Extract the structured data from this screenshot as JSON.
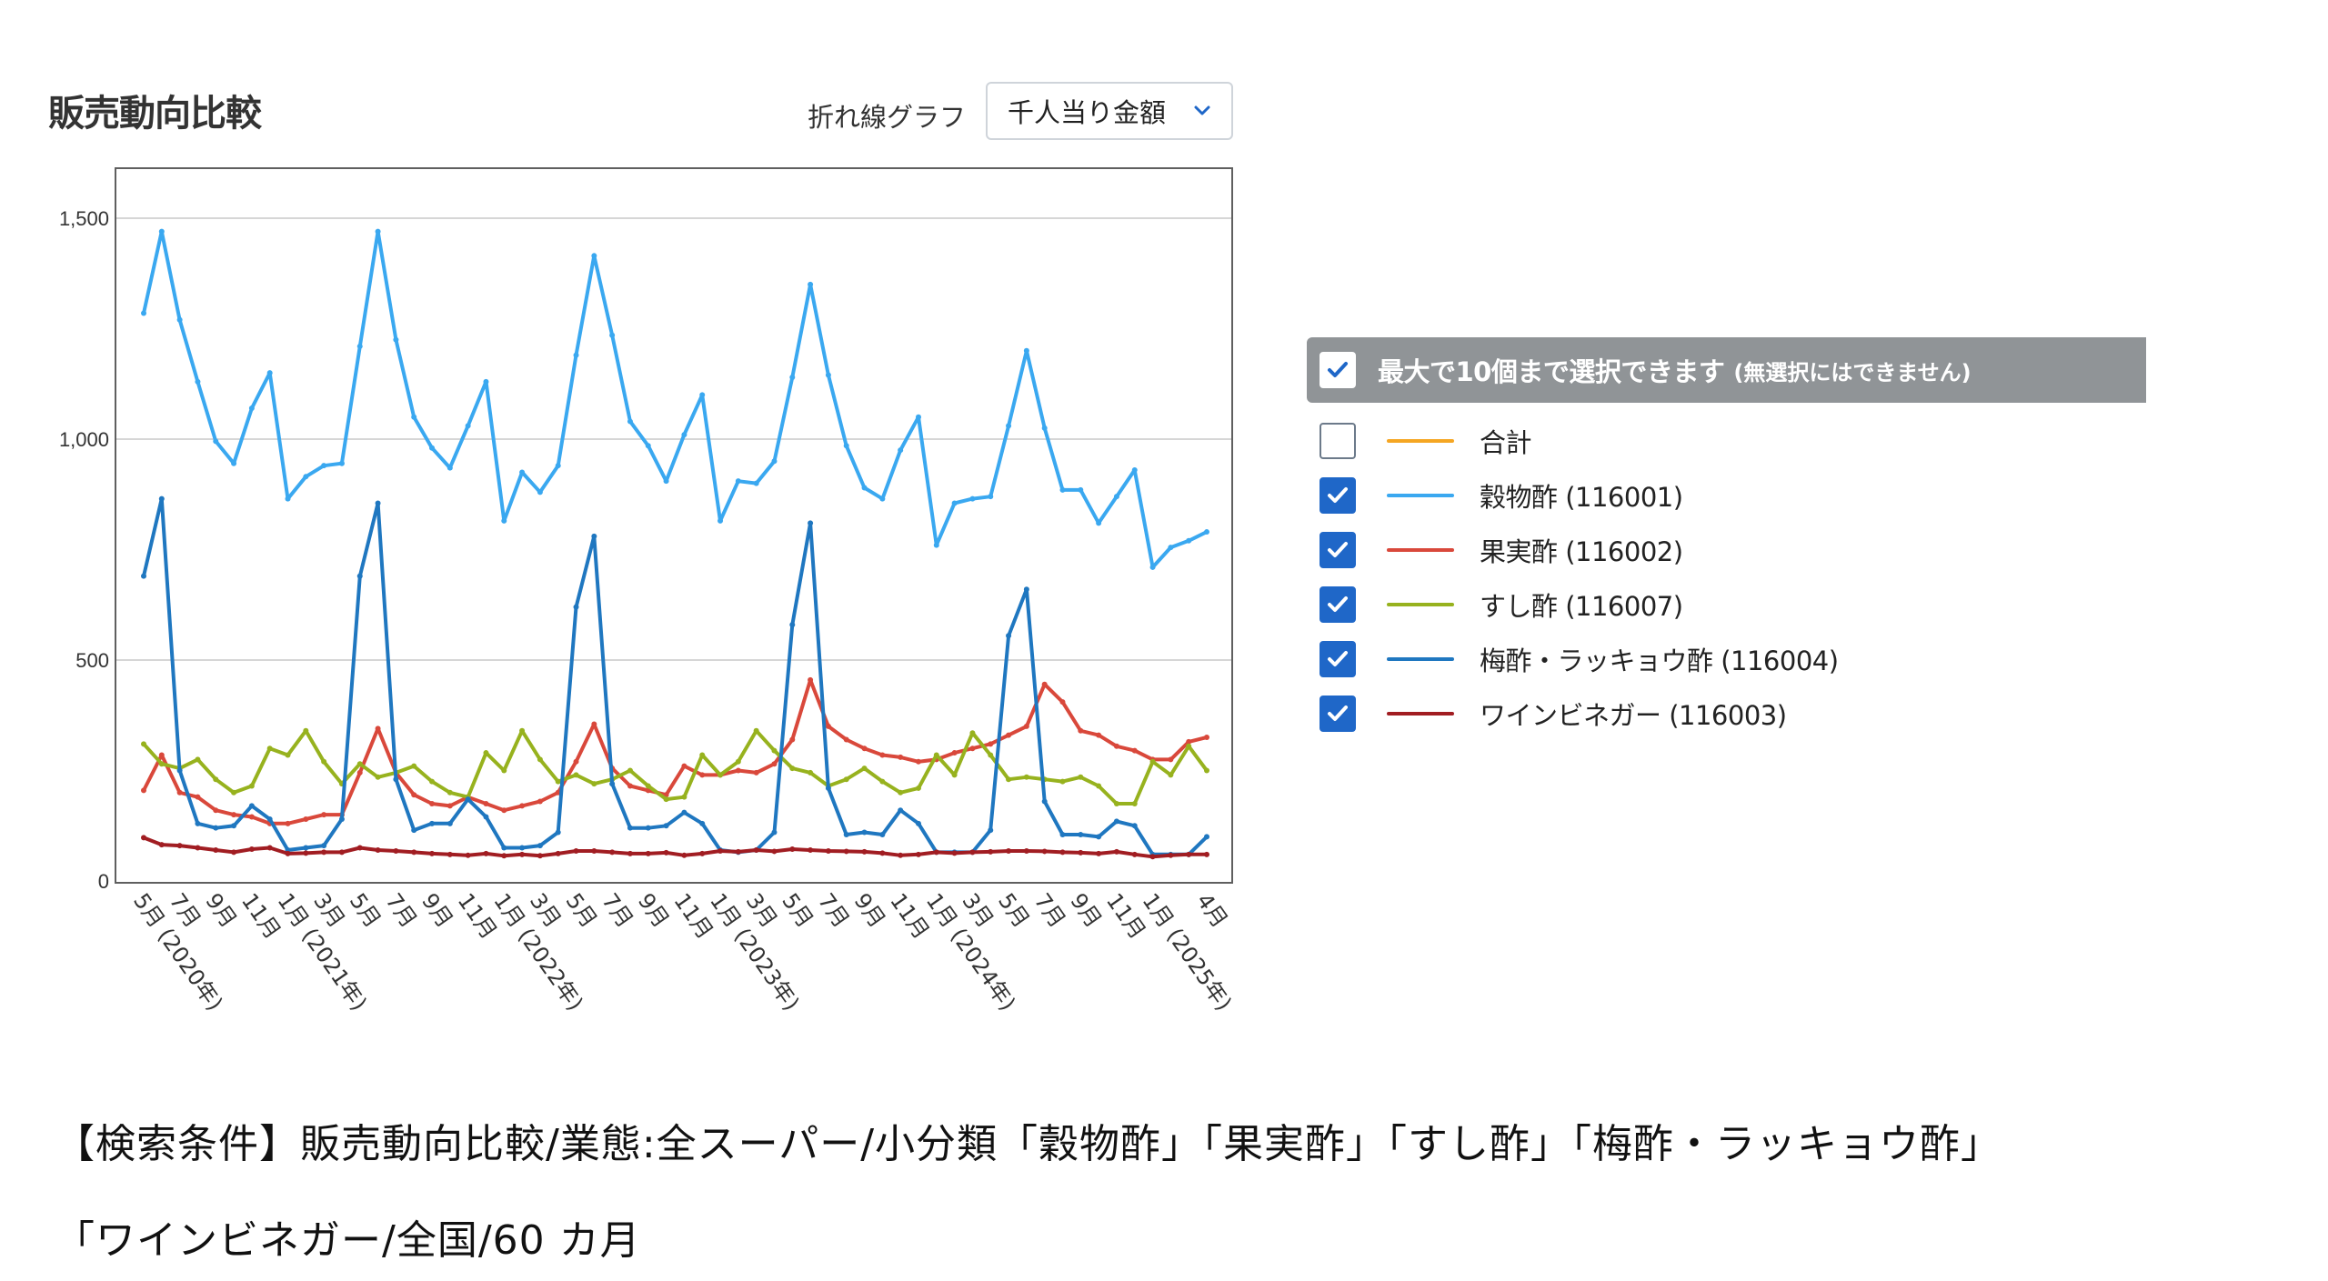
{
  "header": {
    "title": "販売動向比較",
    "chart_type_label": "折れ線グラフ",
    "metric_select_value": "千人当り金額"
  },
  "legend": {
    "header_text": "最大で10個まで選択できます",
    "header_note": "(無選択にはできません)",
    "header_checked": true,
    "items": [
      {
        "label": "合計",
        "color": "#f5a623",
        "checked": false
      },
      {
        "label": "穀物酢 (116001)",
        "color": "#3aa8f0",
        "checked": true
      },
      {
        "label": "果実酢 (116002)",
        "color": "#d9483b",
        "checked": true
      },
      {
        "label": "すし酢 (116007)",
        "color": "#97b21e",
        "checked": true
      },
      {
        "label": "梅酢・ラッキョウ酢 (116004)",
        "color": "#1f77c0",
        "checked": true
      },
      {
        "label": "ワインビネガー (116003)",
        "color": "#a11d22",
        "checked": true
      }
    ]
  },
  "caption": {
    "line1": "【検索条件】販売動向比較/業態:全スーパー/小分類「穀物酢」「果実酢」「すし酢」「梅酢・ラッキョウ酢」",
    "line2": "「ワインビネガー/全国/60 カ月"
  },
  "chart_data": {
    "type": "line",
    "ylim": [
      0,
      1500
    ],
    "y_ticks": [
      "0",
      "500",
      "1,000",
      "1,500"
    ],
    "y_tick_values": [
      0,
      500,
      1000,
      1500
    ],
    "grid": true,
    "x_tick_labels": [
      "5月 (2020年)",
      "7月",
      "9月",
      "11月",
      "1月 (2021年)",
      "3月",
      "5月",
      "7月",
      "9月",
      "11月",
      "1月 (2022年)",
      "3月",
      "5月",
      "7月",
      "9月",
      "11月",
      "1月 (2023年)",
      "3月",
      "5月",
      "7月",
      "9月",
      "11月",
      "1月 (2024年)",
      "3月",
      "5月",
      "7月",
      "9月",
      "11月",
      "1月 (2025年)",
      "4月"
    ],
    "x_tick_index": [
      0,
      2,
      4,
      6,
      8,
      10,
      12,
      14,
      16,
      18,
      20,
      22,
      24,
      26,
      28,
      30,
      32,
      34,
      36,
      38,
      40,
      42,
      44,
      46,
      48,
      50,
      52,
      54,
      56,
      59
    ],
    "num_points": 60,
    "series": [
      {
        "name": "穀物酢 (116001)",
        "color": "#3aa8f0",
        "values": [
          1285,
          1470,
          1270,
          1130,
          995,
          945,
          1070,
          1150,
          865,
          915,
          940,
          945,
          1210,
          1470,
          1225,
          1050,
          980,
          935,
          1030,
          1130,
          815,
          925,
          880,
          940,
          1190,
          1415,
          1235,
          1040,
          985,
          905,
          1010,
          1100,
          815,
          905,
          900,
          950,
          1140,
          1350,
          1145,
          985,
          890,
          865,
          975,
          1050,
          760,
          855,
          865,
          870,
          1030,
          1200,
          1025,
          885,
          885,
          810,
          870,
          930,
          710,
          755,
          770,
          790
        ]
      },
      {
        "name": "果実酢 (116002)",
        "color": "#d9483b",
        "values": [
          205,
          285,
          200,
          190,
          160,
          150,
          145,
          130,
          130,
          140,
          150,
          150,
          245,
          345,
          245,
          195,
          175,
          170,
          190,
          175,
          160,
          170,
          180,
          200,
          270,
          355,
          255,
          215,
          205,
          195,
          260,
          240,
          240,
          250,
          245,
          265,
          320,
          455,
          350,
          320,
          300,
          285,
          280,
          270,
          275,
          290,
          300,
          310,
          330,
          350,
          445,
          405,
          340,
          330,
          305,
          295,
          275,
          275,
          315,
          325
        ]
      },
      {
        "name": "すし酢 (116007)",
        "color": "#97b21e",
        "values": [
          310,
          265,
          255,
          275,
          230,
          200,
          215,
          300,
          285,
          340,
          270,
          220,
          265,
          235,
          245,
          260,
          225,
          200,
          190,
          290,
          250,
          340,
          275,
          225,
          240,
          220,
          230,
          250,
          215,
          185,
          190,
          285,
          240,
          270,
          340,
          295,
          255,
          245,
          215,
          230,
          255,
          225,
          200,
          210,
          285,
          240,
          335,
          285,
          230,
          235,
          230,
          225,
          235,
          215,
          175,
          175,
          270,
          240,
          305,
          250
        ]
      },
      {
        "name": "梅酢・ラッキョウ酢 (116004)",
        "color": "#1f77c0",
        "values": [
          690,
          865,
          250,
          130,
          120,
          125,
          170,
          140,
          70,
          75,
          80,
          140,
          690,
          855,
          230,
          115,
          130,
          130,
          185,
          145,
          75,
          75,
          80,
          110,
          620,
          780,
          220,
          120,
          120,
          125,
          155,
          130,
          70,
          65,
          70,
          110,
          580,
          810,
          210,
          105,
          110,
          105,
          160,
          130,
          65,
          65,
          65,
          115,
          555,
          660,
          180,
          105,
          105,
          100,
          135,
          125,
          60,
          60,
          60,
          100
        ]
      },
      {
        "name": "ワインビネガー (116003)",
        "color": "#a11d22",
        "values": [
          98,
          82,
          80,
          75,
          70,
          65,
          72,
          75,
          62,
          63,
          65,
          65,
          75,
          70,
          68,
          65,
          62,
          60,
          58,
          62,
          57,
          60,
          57,
          62,
          68,
          68,
          65,
          62,
          62,
          64,
          58,
          62,
          68,
          66,
          70,
          67,
          72,
          70,
          68,
          67,
          66,
          63,
          58,
          60,
          65,
          63,
          65,
          66,
          68,
          68,
          67,
          65,
          64,
          62,
          66,
          60,
          55,
          58,
          60,
          60
        ]
      }
    ]
  }
}
